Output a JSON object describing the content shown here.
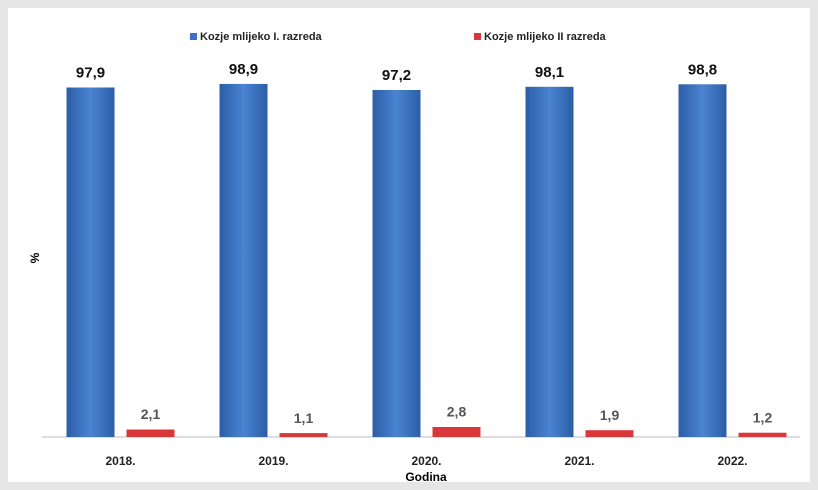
{
  "chart_data": {
    "type": "bar",
    "categories": [
      "2018.",
      "2019.",
      "2020.",
      "2021.",
      "2022."
    ],
    "series": [
      {
        "name": "Kozje mlijeko I. razreda",
        "color": "#3a72c0",
        "values": [
          97.9,
          98.9,
          97.2,
          98.1,
          98.8
        ],
        "value_labels": [
          "97,9",
          "98,9",
          "97,2",
          "98,1",
          "98,8"
        ]
      },
      {
        "name": "Kozje mlijeko II razreda",
        "color": "#d9383a",
        "values": [
          2.1,
          1.1,
          2.8,
          1.9,
          1.2
        ],
        "value_labels": [
          "2,1",
          "1,1",
          "2,8",
          "1,9",
          "1,2"
        ]
      }
    ],
    "ylim": [
      0,
      100
    ],
    "y_label": "%",
    "x_label": "Godina"
  }
}
